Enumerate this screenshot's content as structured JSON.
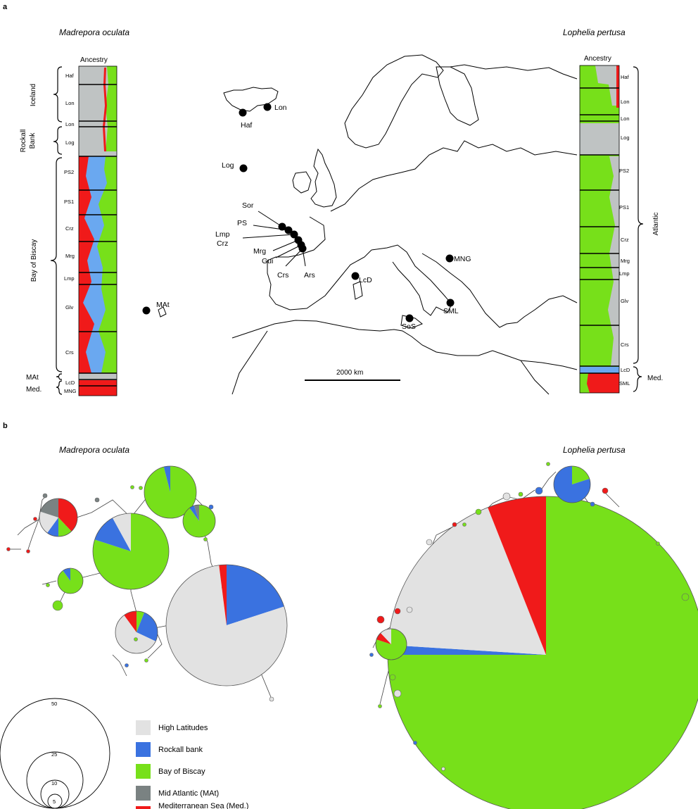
{
  "panel_a": {
    "letter": "a",
    "left_species": "Madrepora oculata",
    "right_species": "Lophelia pertusa",
    "left_ancestry_label": "Ancestry",
    "right_ancestry_label": "Ancestry",
    "left_pops": [
      "Haf",
      "Lon",
      "Lon",
      "Log",
      "PS2",
      "PS1",
      "Crz",
      "Mrg",
      "Lmp",
      "Glv",
      "Crs",
      "MAt",
      "LcD",
      "MNG"
    ],
    "right_pops": [
      "Haf",
      "Lon",
      "Lon",
      "Log",
      "PS2",
      "PS1",
      "Crz",
      "Mrg",
      "Lmp",
      "Glv",
      "Crs",
      "LcD",
      "SML"
    ],
    "left_groups": {
      "iceland": "Iceland",
      "rockall_1": "Rockall",
      "rockall_2": "Bank",
      "biscay": "Bay of Biscay",
      "mat": "MAt",
      "med": "Med."
    },
    "right_groups": {
      "atlantic": "Atlantic",
      "med": "Med."
    },
    "map_sites": {
      "lon": "Lon",
      "haf": "Haf",
      "log": "Log",
      "sor": "Sor",
      "ps": "PS",
      "lmp": "Lmp",
      "crz": "Crz",
      "mrg": "Mrg",
      "gui": "Gui",
      "crs": "Crs",
      "ars": "Ars",
      "mat": "MAt",
      "lcd": "LcD",
      "mng": "MNG",
      "sml": "SML",
      "sos": "SoS"
    },
    "scale_bar": "2000 km"
  },
  "panel_b": {
    "letter": "b",
    "left_species": "Madrepora oculata",
    "right_species": "Lophelia pertusa",
    "size_legend": [
      "50",
      "25",
      "10",
      "5"
    ],
    "legend": [
      {
        "label": "High Latitudes",
        "color": "#e2e2e2"
      },
      {
        "label": "Rockall bank",
        "color": "#3a72e0"
      },
      {
        "label": "Bay of Biscay",
        "color": "#77e01a"
      },
      {
        "label": "Mid Atlantic (MAt)",
        "color": "#7a8282"
      },
      {
        "label": "Mediterranean Sea (Med.)",
        "color": "#f01a1a"
      }
    ]
  },
  "colors": {
    "high_latitudes": "#e2e2e2",
    "rockall": "#3a72e0",
    "biscay": "#77e01a",
    "mat": "#7a8282",
    "med": "#f01a1a",
    "struct_gray": "#bfc3c3",
    "struct_blue": "#6aa8f0"
  }
}
